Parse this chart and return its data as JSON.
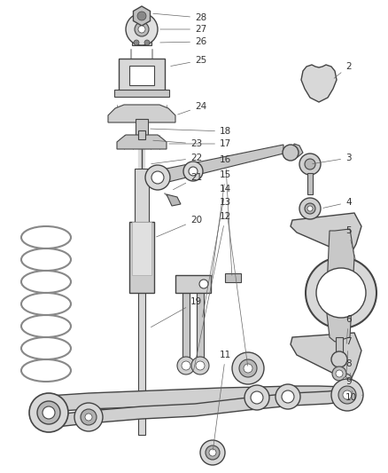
{
  "background_color": "#ffffff",
  "fig_width": 4.38,
  "fig_height": 5.33,
  "dpi": 100,
  "line_color": "#444444",
  "text_color": "#333333",
  "font_size": 7.5,
  "callout_lw": 0.5,
  "parts_fill": "#e8e8e8",
  "parts_dark": "#b0b0b0",
  "parts_light": "#f0f0f0"
}
